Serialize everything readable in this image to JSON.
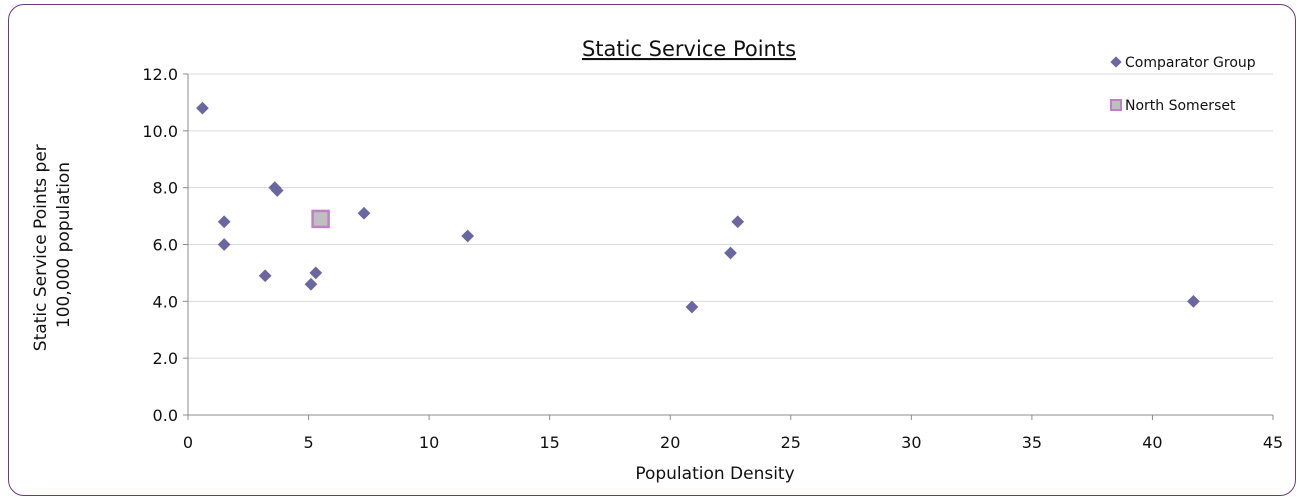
{
  "chart_data": {
    "type": "scatter",
    "title": "Static Service Points",
    "xlabel": "Population Density",
    "ylabel_lines": [
      "Static Service Points per",
      "100,000 population"
    ],
    "xlim": [
      0,
      45
    ],
    "ylim": [
      0,
      12
    ],
    "x_ticks": [
      0,
      5,
      10,
      15,
      20,
      25,
      30,
      35,
      40,
      45
    ],
    "x_tick_labels": [
      "0",
      "5",
      "10",
      "15",
      "20",
      "25",
      "30",
      "35",
      "40",
      "45"
    ],
    "y_ticks": [
      0,
      2,
      4,
      6,
      8,
      10,
      12
    ],
    "y_tick_labels": [
      "0.0",
      "2.0",
      "4.0",
      "6.0",
      "8.0",
      "10.0",
      "12.0"
    ],
    "grid": "horizontal",
    "legend_position": "top-right",
    "series": [
      {
        "name": "Comparator Group",
        "marker": "diamond",
        "color": "#6a67a0",
        "points": [
          {
            "x": 0.6,
            "y": 10.8
          },
          {
            "x": 1.5,
            "y": 6.8
          },
          {
            "x": 1.5,
            "y": 6.0
          },
          {
            "x": 3.2,
            "y": 4.9
          },
          {
            "x": 3.6,
            "y": 8.0
          },
          {
            "x": 3.7,
            "y": 7.9
          },
          {
            "x": 5.1,
            "y": 4.6
          },
          {
            "x": 5.3,
            "y": 5.0
          },
          {
            "x": 7.3,
            "y": 7.1
          },
          {
            "x": 11.6,
            "y": 6.3
          },
          {
            "x": 20.9,
            "y": 3.8
          },
          {
            "x": 22.5,
            "y": 5.7
          },
          {
            "x": 22.8,
            "y": 6.8
          },
          {
            "x": 41.7,
            "y": 4.0
          }
        ]
      },
      {
        "name": "North Somerset",
        "marker": "square",
        "color": "#bfbfbf",
        "edge_color": "#c080c8",
        "points": [
          {
            "x": 5.5,
            "y": 6.9
          }
        ]
      }
    ]
  }
}
